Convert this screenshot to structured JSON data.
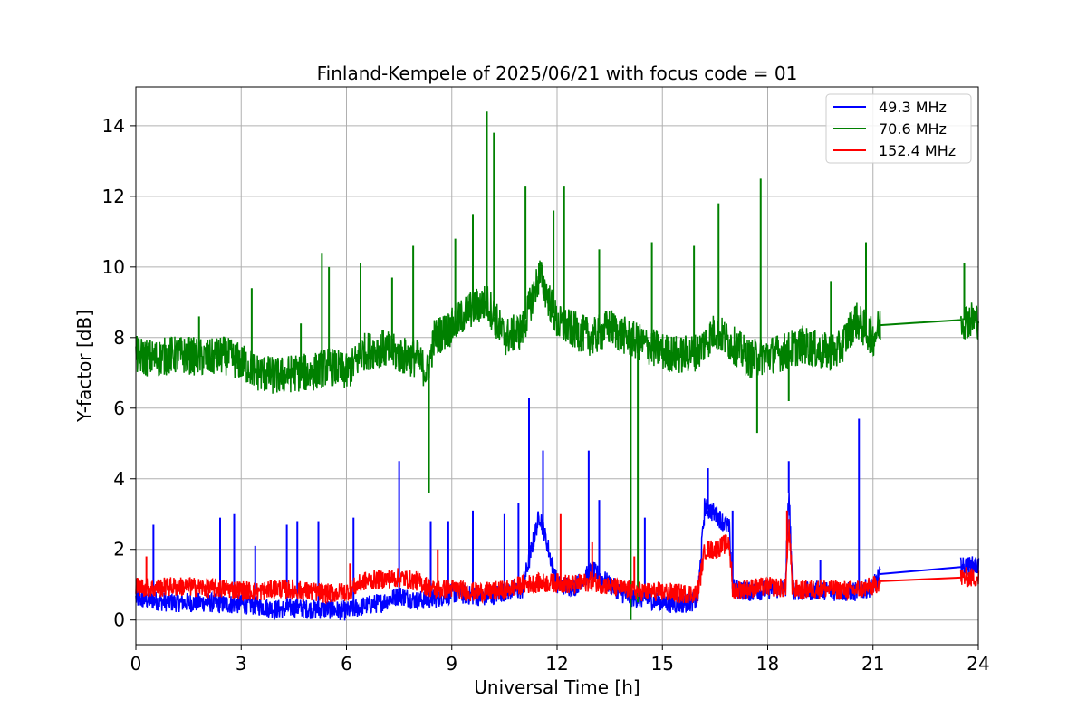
{
  "chart_data": {
    "type": "line",
    "title": "Finland-Kempele of 2025/06/21 with focus code = 01",
    "xlabel": "Universal Time [h]",
    "ylabel": "Y-factor [dB]",
    "xlim": [
      0,
      24
    ],
    "ylim": [
      -0.7,
      15.1
    ],
    "x_ticks": [
      0,
      3,
      6,
      9,
      12,
      15,
      18,
      21,
      24
    ],
    "y_ticks": [
      0,
      2,
      4,
      6,
      8,
      10,
      12,
      14
    ],
    "grid": true,
    "legend_position": "top-right",
    "data_gap_hours": [
      21.2,
      23.5
    ],
    "series": [
      {
        "name": " 49.3 MHz",
        "color": "#0000ff",
        "x": [
          0,
          0.5,
          1,
          1.5,
          2,
          2.5,
          3,
          3.5,
          4,
          4.5,
          5,
          5.5,
          6,
          6.5,
          7,
          7.5,
          8,
          8.5,
          9,
          9.5,
          10,
          10.5,
          11,
          11.5,
          12,
          12.5,
          13,
          13.5,
          14,
          14.5,
          15,
          15.5,
          16,
          16.2,
          16.5,
          16.9,
          17,
          17.5,
          18,
          18.5,
          18.6,
          18.7,
          19,
          19.5,
          20,
          20.5,
          21,
          21.2,
          23.5,
          24
        ],
        "y": [
          0.6,
          0.55,
          0.5,
          0.5,
          0.5,
          0.45,
          0.45,
          0.4,
          0.3,
          0.35,
          0.3,
          0.3,
          0.25,
          0.4,
          0.5,
          0.7,
          0.55,
          0.6,
          0.75,
          0.7,
          0.65,
          0.8,
          0.85,
          3.0,
          1.0,
          0.95,
          1.4,
          1.0,
          0.65,
          0.6,
          0.5,
          0.45,
          0.55,
          3.2,
          3.0,
          2.6,
          0.9,
          0.8,
          0.85,
          0.9,
          3.6,
          0.85,
          0.8,
          0.85,
          0.8,
          0.8,
          0.95,
          1.3,
          1.5,
          1.55
        ],
        "spikes": [
          [
            0.5,
            2.7
          ],
          [
            2.4,
            2.9
          ],
          [
            2.8,
            3.0
          ],
          [
            3.4,
            2.1
          ],
          [
            4.3,
            2.7
          ],
          [
            4.6,
            2.8
          ],
          [
            5.2,
            2.8
          ],
          [
            6.2,
            2.9
          ],
          [
            7.5,
            4.5
          ],
          [
            8.4,
            2.8
          ],
          [
            8.9,
            2.8
          ],
          [
            9.6,
            3.1
          ],
          [
            10.5,
            3.0
          ],
          [
            10.9,
            3.3
          ],
          [
            11.2,
            6.3
          ],
          [
            11.6,
            4.8
          ],
          [
            12.9,
            4.8
          ],
          [
            13.2,
            3.4
          ],
          [
            14.5,
            2.9
          ],
          [
            16.3,
            4.3
          ],
          [
            17.0,
            3.1
          ],
          [
            18.6,
            4.5
          ],
          [
            19.5,
            1.7
          ],
          [
            20.6,
            5.7
          ]
        ]
      },
      {
        "name": " 70.6 MHz",
        "color": "#008000",
        "x": [
          0,
          0.5,
          1,
          1.5,
          2,
          2.5,
          3,
          3.5,
          4,
          4.5,
          5,
          5.5,
          6,
          6.5,
          7,
          7.5,
          8,
          8.3,
          8.5,
          9,
          9.5,
          10,
          10.5,
          11,
          11.5,
          12,
          12.5,
          13,
          13.5,
          14,
          14.5,
          15,
          15.5,
          16,
          16.5,
          17,
          17.5,
          18,
          18.5,
          19,
          19.5,
          20,
          20.5,
          21,
          21.2,
          23.5,
          24
        ],
        "y": [
          7.5,
          7.4,
          7.5,
          7.5,
          7.4,
          7.5,
          7.3,
          7.0,
          6.9,
          7.0,
          7.0,
          7.2,
          7.0,
          7.6,
          7.7,
          7.5,
          7.4,
          7.0,
          8.0,
          8.3,
          8.8,
          9.0,
          8.0,
          8.2,
          9.8,
          8.4,
          8.2,
          8.0,
          8.3,
          8.0,
          7.8,
          7.6,
          7.5,
          7.6,
          8.2,
          7.8,
          7.4,
          7.5,
          7.6,
          7.8,
          7.6,
          7.6,
          8.5,
          8.0,
          8.35,
          8.5,
          8.5
        ],
        "spikes": [
          [
            1.8,
            8.6
          ],
          [
            3.3,
            9.4
          ],
          [
            4.7,
            8.4
          ],
          [
            5.3,
            10.4
          ],
          [
            5.5,
            10.0
          ],
          [
            6.4,
            10.1
          ],
          [
            7.3,
            9.7
          ],
          [
            7.9,
            10.6
          ],
          [
            8.35,
            3.6
          ],
          [
            9.1,
            10.8
          ],
          [
            9.6,
            11.5
          ],
          [
            10.0,
            14.4
          ],
          [
            10.2,
            13.8
          ],
          [
            11.1,
            12.3
          ],
          [
            11.9,
            11.6
          ],
          [
            12.2,
            12.3
          ],
          [
            13.2,
            10.5
          ],
          [
            14.1,
            0.0
          ],
          [
            14.3,
            0.5
          ],
          [
            14.7,
            10.7
          ],
          [
            15.9,
            10.6
          ],
          [
            16.6,
            11.8
          ],
          [
            17.7,
            5.3
          ],
          [
            17.8,
            12.5
          ],
          [
            18.6,
            6.2
          ],
          [
            19.8,
            9.6
          ],
          [
            20.8,
            10.7
          ],
          [
            23.6,
            10.1
          ]
        ]
      },
      {
        "name": "152.4 MHz",
        "color": "#ff0000",
        "x": [
          0,
          0.5,
          1,
          1.5,
          2,
          2.5,
          3,
          3.5,
          4,
          4.5,
          5,
          5.5,
          6,
          6.5,
          7,
          7.5,
          8,
          8.5,
          9,
          9.5,
          10,
          10.5,
          11,
          11.5,
          12,
          12.5,
          13,
          13.5,
          14,
          14.5,
          15,
          15.5,
          16,
          16.2,
          16.5,
          16.9,
          17,
          17.5,
          18,
          18.5,
          18.6,
          18.7,
          19,
          19.5,
          20,
          20.5,
          21,
          21.2,
          23.5,
          24
        ],
        "y": [
          0.95,
          0.9,
          0.95,
          0.95,
          0.9,
          0.9,
          0.85,
          0.8,
          0.9,
          0.85,
          0.8,
          0.75,
          0.8,
          1.1,
          1.15,
          1.2,
          1.1,
          0.85,
          0.9,
          0.8,
          0.8,
          0.85,
          1.0,
          1.05,
          1.05,
          1.0,
          1.1,
          0.95,
          0.85,
          0.8,
          0.8,
          0.75,
          0.75,
          2.0,
          2.0,
          2.2,
          0.85,
          0.9,
          0.95,
          0.9,
          2.6,
          0.9,
          0.85,
          0.9,
          0.85,
          0.85,
          0.95,
          1.1,
          1.2,
          1.2
        ],
        "spikes": [
          [
            0.3,
            1.8
          ],
          [
            6.1,
            1.6
          ],
          [
            8.6,
            2.0
          ],
          [
            12.1,
            3.0
          ],
          [
            13.0,
            2.2
          ],
          [
            14.2,
            1.8
          ],
          [
            18.55,
            3.1
          ]
        ]
      }
    ]
  }
}
